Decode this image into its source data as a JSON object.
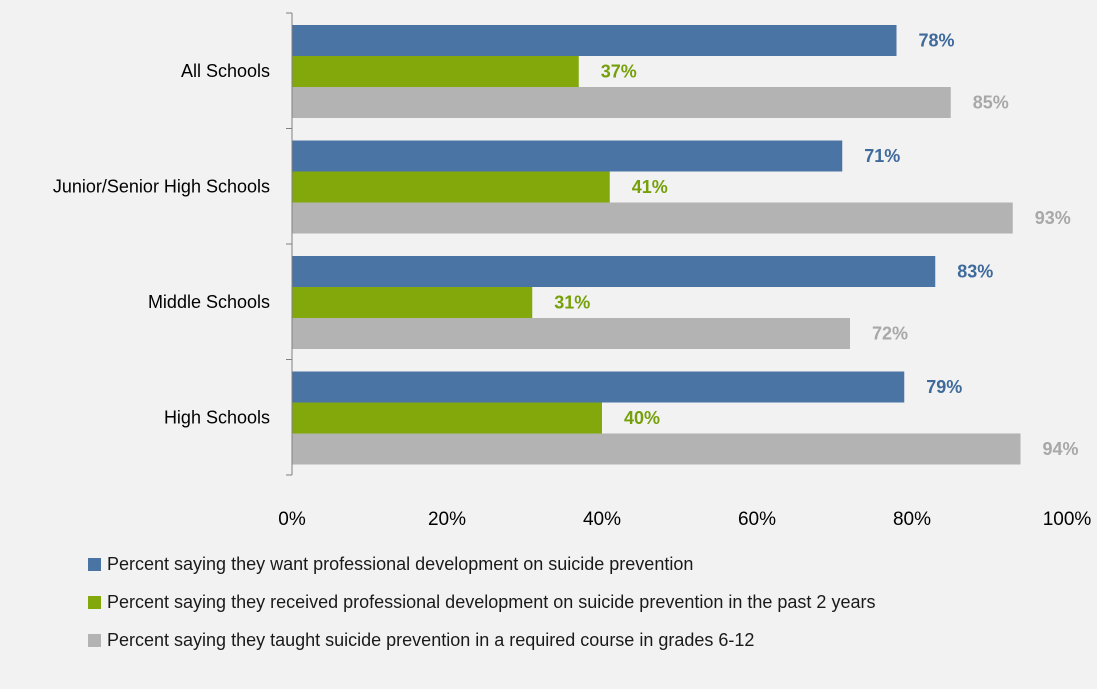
{
  "chart_data": {
    "type": "bar",
    "orientation": "horizontal",
    "categories": [
      "All Schools",
      "Junior/Senior High Schools",
      "Middle Schools",
      "High Schools"
    ],
    "series": [
      {
        "name": "Percent saying they want professional development on suicide prevention",
        "values": [
          78,
          71,
          83,
          79
        ],
        "color": "#4a74a4"
      },
      {
        "name": "Percent saying they received professional development on suicide prevention in the past 2 years",
        "values": [
          37,
          41,
          31,
          40
        ],
        "color": "#82a80c"
      },
      {
        "name": "Percent saying they taught suicide prevention in a required course in grades 6-12",
        "values": [
          85,
          93,
          72,
          94
        ],
        "color": "#b3b3b3"
      }
    ],
    "data_labels": [
      [
        "78%",
        "37%",
        "85%"
      ],
      [
        "71%",
        "41%",
        "93%"
      ],
      [
        "83%",
        "31%",
        "72%"
      ],
      [
        "79%",
        "40%",
        "94%"
      ]
    ],
    "x_ticks": [
      "0%",
      "20%",
      "40%",
      "60%",
      "80%",
      "100%"
    ],
    "xlim": [
      0,
      100
    ],
    "grid": false,
    "legend_position": "bottom"
  }
}
